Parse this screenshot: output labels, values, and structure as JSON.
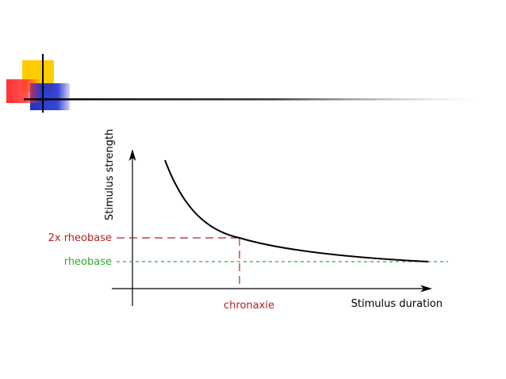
{
  "colors": {
    "deco_yellow": "#FFCC00",
    "deco_red": "#FF3333",
    "deco_blue": "#2233CC",
    "curve": "#000000",
    "axis": "#000000",
    "rheobase_2x": "#B22222",
    "rheobase": "#33AA33",
    "chronaxie": "#B22222"
  },
  "icons": {
    "decoration": "colored-blocks-cross-icon"
  },
  "diagram": {
    "y_axis_label": "Stimulus strength",
    "x_axis_label": "Stimulus duration",
    "level_2x_label": "2x rheobase",
    "level_1x_label": "rheobase",
    "chronaxie_label": "chronaxie"
  }
}
